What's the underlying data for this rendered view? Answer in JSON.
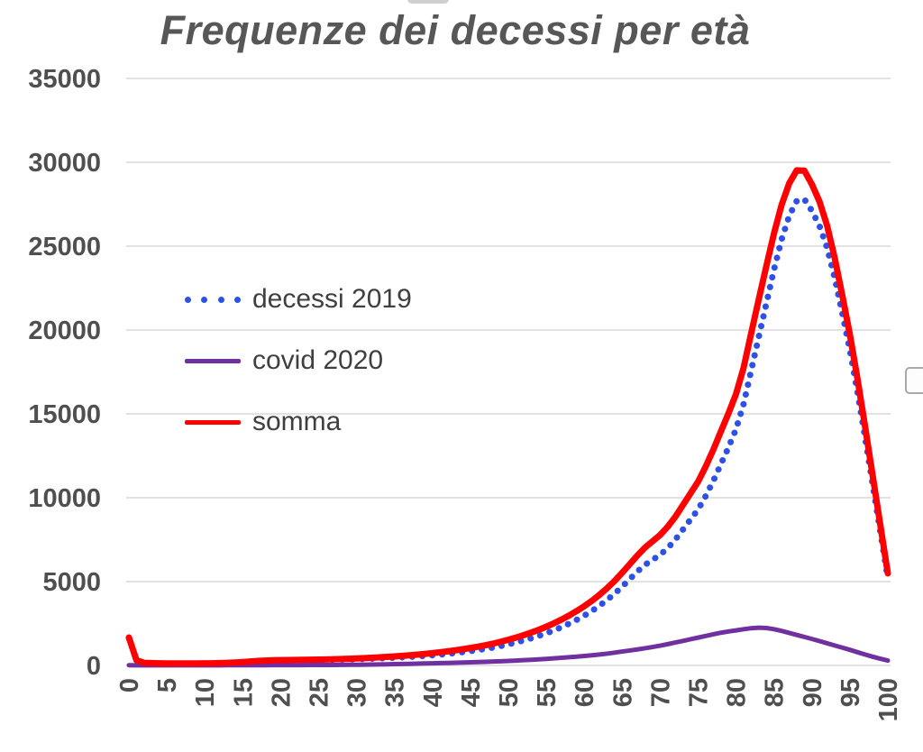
{
  "title": "Frequenze dei decessi per età",
  "colors": {
    "decessi": "#2d50e6",
    "covid": "#7030a0",
    "somma": "#ff0000",
    "grid": "#d9d9d9",
    "axis_text": "#4f4f4f",
    "title_text": "#575757",
    "legend_text": "#3f3f3f"
  },
  "chart_data": {
    "type": "line",
    "title": "Frequenze dei decessi per età",
    "xlabel": "",
    "ylabel": "",
    "x_range": [
      0,
      100,
      1
    ],
    "x_ticks": [
      0,
      5,
      10,
      15,
      20,
      25,
      30,
      35,
      40,
      45,
      50,
      55,
      60,
      65,
      70,
      75,
      80,
      85,
      90,
      95,
      100
    ],
    "x_tick_labels": [
      "0",
      "5",
      "10",
      "15",
      "20",
      "25",
      "30",
      "35",
      "40",
      "45",
      "50",
      "55",
      "60",
      "65",
      "70",
      "75",
      "80",
      "85",
      "90",
      "95",
      "100"
    ],
    "y_ticks": [
      0,
      5000,
      10000,
      15000,
      20000,
      25000,
      30000,
      35000
    ],
    "y_tick_labels": [
      "0",
      "5000",
      "10000",
      "15000",
      "20000",
      "25000",
      "30000",
      "35000"
    ],
    "ylim": [
      0,
      35000
    ],
    "grid": "horizontal",
    "legend_position": "inside-left",
    "x_tick_rotation_deg": -90,
    "series": [
      {
        "name": "decessi 2019",
        "style": "dotted",
        "color": "#2d50e6",
        "values": [
          1650,
          300,
          150,
          130,
          120,
          115,
          110,
          110,
          110,
          110,
          115,
          120,
          130,
          145,
          165,
          190,
          220,
          250,
          275,
          290,
          300,
          305,
          310,
          315,
          320,
          325,
          330,
          340,
          350,
          360,
          375,
          390,
          405,
          420,
          440,
          460,
          485,
          510,
          540,
          570,
          605,
          645,
          690,
          740,
          795,
          855,
          920,
          990,
          1070,
          1160,
          1260,
          1370,
          1490,
          1620,
          1760,
          1920,
          2090,
          2280,
          2490,
          2720,
          2970,
          3250,
          3560,
          3900,
          4280,
          4700,
          5150,
          5600,
          6000,
          6300,
          6600,
          7000,
          7500,
          8100,
          8700,
          9300,
          10100,
          11000,
          12000,
          13000,
          14100,
          15600,
          17600,
          19600,
          21600,
          23600,
          25400,
          26800,
          27700,
          27800,
          27100,
          26200,
          24900,
          23100,
          21000,
          18800,
          16300,
          13600,
          10800,
          8000,
          5200
        ]
      },
      {
        "name": "covid 2020",
        "style": "solid",
        "color": "#7030a0",
        "values": [
          15,
          10,
          8,
          8,
          8,
          8,
          8,
          8,
          8,
          8,
          10,
          10,
          10,
          12,
          12,
          14,
          14,
          16,
          16,
          18,
          18,
          20,
          20,
          22,
          24,
          26,
          28,
          30,
          34,
          38,
          42,
          48,
          54,
          62,
          70,
          80,
          88,
          96,
          106,
          118,
          130,
          140,
          150,
          162,
          174,
          186,
          200,
          215,
          232,
          250,
          270,
          292,
          314,
          338,
          364,
          392,
          422,
          454,
          488,
          524,
          562,
          604,
          650,
          702,
          762,
          830,
          890,
          955,
          1025,
          1100,
          1180,
          1270,
          1365,
          1462,
          1560,
          1660,
          1760,
          1860,
          1950,
          2025,
          2090,
          2160,
          2220,
          2250,
          2230,
          2160,
          2060,
          1940,
          1820,
          1700,
          1580,
          1450,
          1320,
          1190,
          1060,
          930,
          790,
          650,
          520,
          400,
          290
        ]
      },
      {
        "name": "somma",
        "style": "solid",
        "color": "#ff0000",
        "values": [
          1665,
          310,
          158,
          138,
          128,
          123,
          118,
          118,
          118,
          118,
          125,
          130,
          140,
          157,
          177,
          204,
          234,
          266,
          291,
          308,
          318,
          325,
          330,
          337,
          344,
          351,
          358,
          370,
          384,
          398,
          417,
          438,
          459,
          482,
          510,
          540,
          573,
          606,
          646,
          688,
          735,
          785,
          840,
          902,
          969,
          1041,
          1120,
          1205,
          1302,
          1410,
          1530,
          1662,
          1804,
          1958,
          2124,
          2312,
          2512,
          2734,
          2978,
          3244,
          3532,
          3854,
          4210,
          4602,
          5042,
          5530,
          6040,
          6555,
          7025,
          7400,
          7780,
          8270,
          8865,
          9562,
          10260,
          10960,
          11860,
          12860,
          13950,
          15025,
          16190,
          17760,
          19820,
          21850,
          23830,
          25760,
          27460,
          28740,
          29520,
          29500,
          28680,
          27650,
          26220,
          24290,
          22060,
          19730,
          17090,
          14250,
          11320,
          8400,
          5490
        ]
      }
    ]
  }
}
